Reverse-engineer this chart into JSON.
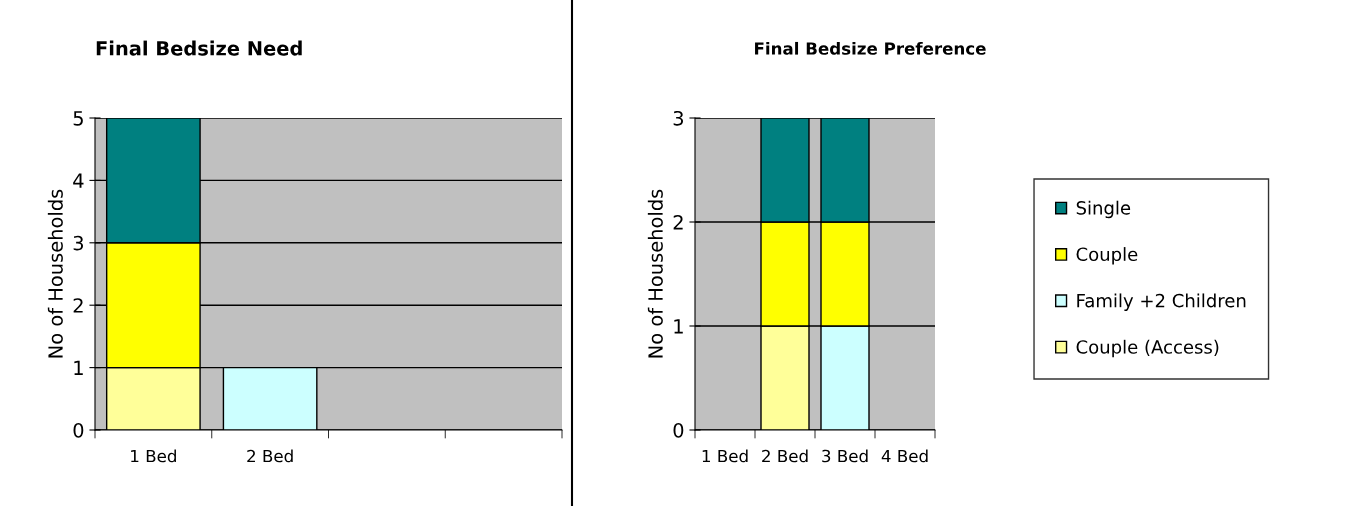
{
  "chart_data": [
    {
      "type": "bar",
      "title": "Final Bedsize Need",
      "ylabel": "No of Households",
      "categories": [
        "1 Bed",
        "2 Bed",
        null,
        null
      ],
      "stacked": true,
      "ylim": [
        0,
        5
      ],
      "yticks": [
        0,
        1,
        2,
        3,
        4,
        5
      ],
      "grid": "y",
      "legend": false,
      "series": [
        {
          "color": "#ffff99",
          "values": [
            1,
            null,
            null,
            null
          ]
        },
        {
          "color": "#ccffff",
          "values": [
            null,
            1,
            null,
            null
          ]
        },
        {
          "color": "#ffff00",
          "values": [
            2,
            null,
            null,
            null
          ]
        },
        {
          "color": "#008080",
          "values": [
            2,
            null,
            null,
            null
          ]
        }
      ]
    },
    {
      "type": "bar",
      "title": "Final Bedsize Preference",
      "ylabel": "No of Households",
      "categories": [
        "1 Bed",
        "2 Bed",
        "3 Bed",
        "4 Bed"
      ],
      "stacked": true,
      "ylim": [
        0,
        3
      ],
      "yticks": [
        0,
        1,
        2,
        3
      ],
      "grid": "y",
      "legend": "right",
      "series": [
        {
          "name": "Couple (Access)",
          "color": "#ffff99",
          "values": [
            null,
            1,
            null,
            null
          ]
        },
        {
          "name": "Family +2 Children",
          "color": "#ccffff",
          "values": [
            null,
            null,
            1,
            null
          ]
        },
        {
          "name": "Couple",
          "color": "#ffff00",
          "values": [
            null,
            1,
            1,
            null
          ]
        },
        {
          "name": "Single",
          "color": "#008080",
          "values": [
            null,
            1,
            1,
            null
          ]
        }
      ]
    }
  ]
}
